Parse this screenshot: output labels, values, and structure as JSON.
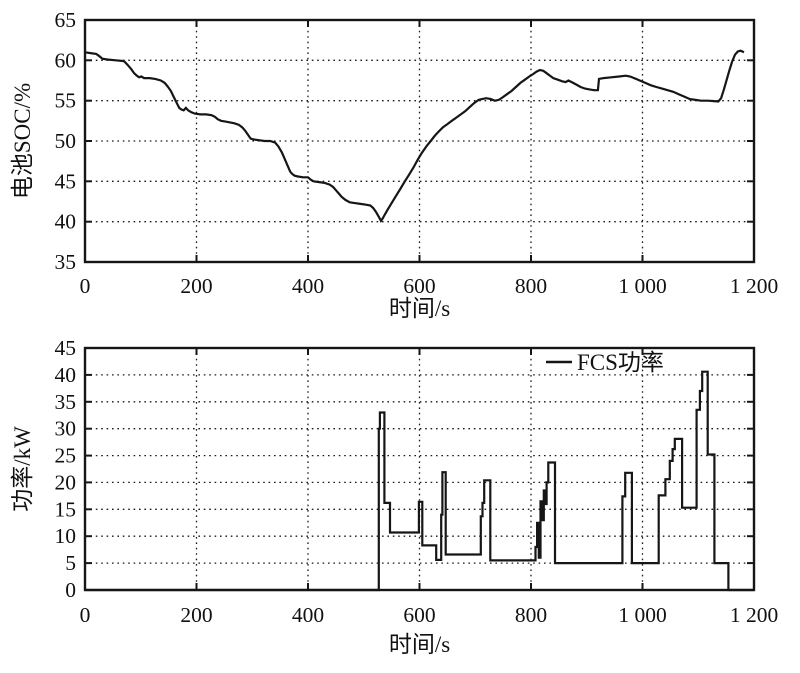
{
  "figure": {
    "background": "#ffffff",
    "line_color": "#161616",
    "grid_color": "#1a1a1a"
  },
  "chart_data": [
    {
      "type": "line",
      "title": "",
      "xlabel": "时间/s",
      "ylabel": "电池SOC/%",
      "xlim": [
        0,
        1200
      ],
      "ylim": [
        35,
        65
      ],
      "xticks": [
        0,
        200,
        400,
        600,
        800,
        1000,
        1200
      ],
      "xtick_labels": [
        "0",
        "200",
        "400",
        "600",
        "800",
        "1 000",
        "1 200"
      ],
      "yticks": [
        35,
        40,
        45,
        50,
        55,
        60,
        65
      ],
      "ytick_labels": [
        "35",
        "40",
        "45",
        "50",
        "55",
        "60",
        "65"
      ],
      "grid": true,
      "legend": null,
      "series": [
        {
          "name": "电池SOC",
          "interpolation": "linear",
          "points": [
            [
              0,
              61
            ],
            [
              10,
              60.9
            ],
            [
              20,
              60.8
            ],
            [
              26,
              60.5
            ],
            [
              31,
              60.2
            ],
            [
              40,
              60.1
            ],
            [
              55,
              60
            ],
            [
              70,
              59.9
            ],
            [
              77,
              59.4
            ],
            [
              83,
              58.9
            ],
            [
              88,
              58.4
            ],
            [
              93,
              58.1
            ],
            [
              97,
              57.9
            ],
            [
              101,
              58
            ],
            [
              106,
              57.8
            ],
            [
              116,
              57.8
            ],
            [
              126,
              57.7
            ],
            [
              136,
              57.5
            ],
            [
              143,
              57.2
            ],
            [
              149,
              56.7
            ],
            [
              154,
              56.2
            ],
            [
              159,
              55.5
            ],
            [
              164,
              54.8
            ],
            [
              169,
              54.1
            ],
            [
              173,
              53.9
            ],
            [
              177,
              53.8
            ],
            [
              181,
              54.1
            ],
            [
              185,
              53.8
            ],
            [
              190,
              53.6
            ],
            [
              197,
              53.4
            ],
            [
              207,
              53.3
            ],
            [
              217,
              53.3
            ],
            [
              227,
              53.2
            ],
            [
              233,
              53
            ],
            [
              238,
              52.7
            ],
            [
              244,
              52.5
            ],
            [
              252,
              52.4
            ],
            [
              260,
              52.3
            ],
            [
              268,
              52.2
            ],
            [
              276,
              52
            ],
            [
              282,
              51.7
            ],
            [
              287,
              51.3
            ],
            [
              292,
              50.8
            ],
            [
              297,
              50.3
            ],
            [
              302,
              50.2
            ],
            [
              312,
              50.1
            ],
            [
              322,
              50
            ],
            [
              332,
              50
            ],
            [
              341,
              49.8
            ],
            [
              347,
              49.3
            ],
            [
              353,
              48.6
            ],
            [
              358,
              47.8
            ],
            [
              363,
              47
            ],
            [
              368,
              46.2
            ],
            [
              372,
              45.9
            ],
            [
              376,
              45.7
            ],
            [
              382,
              45.6
            ],
            [
              391,
              45.5
            ],
            [
              400,
              45.5
            ],
            [
              405,
              45.2
            ],
            [
              410,
              45
            ],
            [
              420,
              44.9
            ],
            [
              430,
              44.8
            ],
            [
              439,
              44.6
            ],
            [
              445,
              44.3
            ],
            [
              450,
              43.9
            ],
            [
              455,
              43.5
            ],
            [
              460,
              43.1
            ],
            [
              467,
              42.7
            ],
            [
              475,
              42.4
            ],
            [
              484,
              42.3
            ],
            [
              494,
              42.2
            ],
            [
              504,
              42.1
            ],
            [
              512,
              42
            ],
            [
              517,
              41.7
            ],
            [
              522,
              41.2
            ],
            [
              527,
              40.6
            ],
            [
              531,
              40.1
            ],
            [
              534,
              40.4
            ],
            [
              538,
              40.9
            ],
            [
              543,
              41.5
            ],
            [
              549,
              42.2
            ],
            [
              557,
              43.1
            ],
            [
              565,
              44
            ],
            [
              573,
              44.9
            ],
            [
              581,
              45.8
            ],
            [
              589,
              46.7
            ],
            [
              597,
              47.7
            ],
            [
              604,
              48.5
            ],
            [
              612,
              49.3
            ],
            [
              620,
              50
            ],
            [
              628,
              50.7
            ],
            [
              635,
              51.2
            ],
            [
              642,
              51.7
            ],
            [
              650,
              52.1
            ],
            [
              658,
              52.5
            ],
            [
              666,
              52.9
            ],
            [
              674,
              53.3
            ],
            [
              682,
              53.7
            ],
            [
              690,
              54.2
            ],
            [
              698,
              54.7
            ],
            [
              706,
              55.1
            ],
            [
              712,
              55.2
            ],
            [
              720,
              55.3
            ],
            [
              728,
              55.2
            ],
            [
              735,
              55
            ],
            [
              742,
              55.1
            ],
            [
              749,
              55.4
            ],
            [
              757,
              55.8
            ],
            [
              765,
              56.2
            ],
            [
              773,
              56.7
            ],
            [
              781,
              57.2
            ],
            [
              789,
              57.6
            ],
            [
              797,
              58
            ],
            [
              804,
              58.3
            ],
            [
              810,
              58.6
            ],
            [
              816,
              58.8
            ],
            [
              822,
              58.7
            ],
            [
              828,
              58.4
            ],
            [
              834,
              58.1
            ],
            [
              840,
              57.8
            ],
            [
              848,
              57.6
            ],
            [
              856,
              57.4
            ],
            [
              862,
              57.3
            ],
            [
              867,
              57.5
            ],
            [
              873,
              57.3
            ],
            [
              881,
              57
            ],
            [
              889,
              56.7
            ],
            [
              897,
              56.5
            ],
            [
              905,
              56.4
            ],
            [
              913,
              56.3
            ],
            [
              920,
              56.3
            ],
            [
              922,
              57.7
            ],
            [
              930,
              57.8
            ],
            [
              944,
              57.9
            ],
            [
              958,
              58
            ],
            [
              970,
              58.1
            ],
            [
              978,
              58
            ],
            [
              985,
              57.8
            ],
            [
              995,
              57.5
            ],
            [
              1005,
              57.2
            ],
            [
              1015,
              56.9
            ],
            [
              1025,
              56.7
            ],
            [
              1035,
              56.5
            ],
            [
              1045,
              56.3
            ],
            [
              1055,
              56.1
            ],
            [
              1065,
              55.8
            ],
            [
              1075,
              55.5
            ],
            [
              1085,
              55.2
            ],
            [
              1095,
              55.1
            ],
            [
              1105,
              55
            ],
            [
              1118,
              55
            ],
            [
              1128,
              54.95
            ],
            [
              1136,
              54.9
            ],
            [
              1141,
              55.3
            ],
            [
              1146,
              56.4
            ],
            [
              1151,
              57.6
            ],
            [
              1156,
              58.8
            ],
            [
              1161,
              59.9
            ],
            [
              1166,
              60.7
            ],
            [
              1171,
              61.1
            ],
            [
              1176,
              61.2
            ],
            [
              1182,
              61
            ]
          ]
        }
      ]
    },
    {
      "type": "line",
      "title": "",
      "xlabel": "时间/s",
      "ylabel": "功率/kW",
      "xlim": [
        0,
        1200
      ],
      "ylim": [
        0,
        45
      ],
      "xticks": [
        0,
        200,
        400,
        600,
        800,
        1000,
        1200
      ],
      "xtick_labels": [
        "0",
        "200",
        "400",
        "600",
        "800",
        "1 000",
        "1 200"
      ],
      "yticks": [
        0,
        5,
        10,
        15,
        20,
        25,
        30,
        35,
        40,
        45
      ],
      "ytick_labels": [
        "0",
        "5",
        "10",
        "15",
        "20",
        "25",
        "30",
        "35",
        "40",
        "45"
      ],
      "grid": true,
      "legend": {
        "label": "FCS功率",
        "position": "top-right"
      },
      "series": [
        {
          "name": "FCS功率",
          "interpolation": "step-after",
          "end_x": 1200,
          "points": [
            [
              0,
              0
            ],
            [
              527,
              30
            ],
            [
              529,
              33
            ],
            [
              537,
              16.2
            ],
            [
              547,
              10.7
            ],
            [
              599,
              16.4
            ],
            [
              605,
              8.3
            ],
            [
              630,
              5.6
            ],
            [
              639,
              14
            ],
            [
              641,
              21.9
            ],
            [
              647,
              6.6
            ],
            [
              710,
              13.7
            ],
            [
              713,
              16.2
            ],
            [
              716,
              20.4
            ],
            [
              727,
              5.5
            ],
            [
              808,
              8
            ],
            [
              811,
              12.5
            ],
            [
              814,
              6
            ],
            [
              817,
              16.5
            ],
            [
              820,
              13
            ],
            [
              823,
              18.5
            ],
            [
              826,
              16
            ],
            [
              828,
              20
            ],
            [
              831,
              23.7
            ],
            [
              843,
              5
            ],
            [
              964,
              17.4
            ],
            [
              969,
              21.8
            ],
            [
              981,
              5
            ],
            [
              1029,
              17.6
            ],
            [
              1041,
              20.6
            ],
            [
              1049,
              24
            ],
            [
              1054,
              26.2
            ],
            [
              1058,
              28.1
            ],
            [
              1071,
              15.3
            ],
            [
              1097,
              33.5
            ],
            [
              1103,
              37
            ],
            [
              1107,
              40.6
            ],
            [
              1117,
              25.2
            ],
            [
              1129,
              5
            ],
            [
              1154,
              0
            ]
          ]
        }
      ]
    }
  ]
}
